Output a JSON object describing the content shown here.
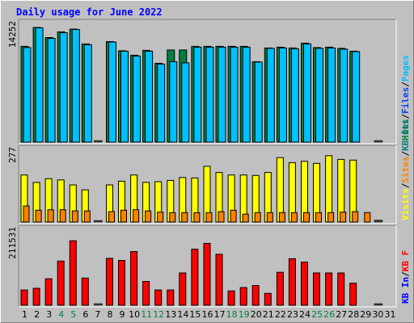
{
  "chart_data": {
    "type": "bar",
    "title": "Daily usage for June 2022",
    "title_color": "#0000ff",
    "categories": [
      "1",
      "2",
      "3",
      "4",
      "5",
      "6",
      "7",
      "8",
      "9",
      "10",
      "11",
      "12",
      "13",
      "14",
      "15",
      "16",
      "17",
      "18",
      "19",
      "20",
      "21",
      "22",
      "23",
      "24",
      "25",
      "26",
      "27",
      "28",
      "29",
      "30",
      "31"
    ],
    "weekend_days": [
      "4",
      "5",
      "11",
      "12",
      "18",
      "19",
      "25",
      "26"
    ],
    "weekend_color": "#008040",
    "panels": [
      {
        "id": "hits",
        "max_label": "14252",
        "ymax": 14252,
        "legend": [
          {
            "text": "Hits",
            "color": "#008040"
          },
          {
            "text": "/",
            "color": "#000000"
          },
          {
            "text": "Files",
            "color": "#0040ff"
          },
          {
            "text": "/",
            "color": "#000000"
          },
          {
            "text": "Pages",
            "color": "#00c0ff"
          }
        ],
        "series": [
          {
            "name": "Hits",
            "color": "#008040",
            "values": [
              11900,
              14252,
              13000,
              13700,
              14050,
              12200,
              0,
              12500,
              11350,
              10800,
              11400,
              9800,
              11450,
              11450,
              11900,
              11900,
              11900,
              11900,
              11900,
              10000,
              11700,
              11800,
              11700,
              12300,
              11750,
              11800,
              11650,
              11300,
              0,
              0,
              0
            ]
          },
          {
            "name": "Files",
            "color": "#0040ff",
            "values": [
              0,
              0,
              0,
              0,
              0,
              0,
              0,
              0,
              0,
              0,
              0,
              0,
              0,
              0,
              0,
              0,
              0,
              0,
              0,
              0,
              0,
              0,
              0,
              0,
              0,
              0,
              0,
              0,
              0,
              0,
              0
            ]
          },
          {
            "name": "Pages",
            "color": "#00c0ff",
            "values": [
              11750,
              14200,
              12900,
              13600,
              14000,
              12100,
              0,
              12450,
              11300,
              10700,
              11300,
              9700,
              10000,
              9850,
              11800,
              11800,
              11800,
              11800,
              11800,
              9950,
              11650,
              11700,
              11600,
              12200,
              11650,
              11700,
              11550,
              11250,
              0,
              0,
              0
            ]
          }
        ],
        "markers": [
          {
            "day": "7",
            "value": 0
          },
          {
            "day": "30",
            "value": 0
          }
        ]
      },
      {
        "id": "visits",
        "max_label": "277",
        "ymax": 277,
        "legend": [
          {
            "text": "Visits",
            "color": "#ffff00"
          },
          {
            "text": "/",
            "color": "#000000"
          },
          {
            "text": "Sites",
            "color": "#ff8000"
          },
          {
            "text": "/",
            "color": "#000000"
          },
          {
            "text": "KB Out",
            "color": "#008080"
          }
        ],
        "series": [
          {
            "name": "Visits",
            "color": "#ffff00",
            "values": [
              190,
              160,
              175,
              170,
              150,
              130,
              0,
              150,
              165,
              190,
              160,
              163,
              168,
              180,
              178,
              225,
              200,
              190,
              190,
              188,
              200,
              260,
              240,
              245,
              237,
              268,
              253,
              250,
              0,
              0,
              0
            ]
          },
          {
            "name": "Sites",
            "color": "#ff8000",
            "values": [
              65,
              48,
              50,
              50,
              45,
              45,
              0,
              42,
              48,
              50,
              45,
              40,
              38,
              38,
              38,
              38,
              42,
              48,
              32,
              38,
              38,
              38,
              38,
              38,
              38,
              38,
              40,
              42,
              38,
              0,
              0
            ]
          },
          {
            "name": "KB Out",
            "color": "#008080",
            "values": [
              0,
              0,
              0,
              0,
              0,
              0,
              0,
              0,
              0,
              0,
              0,
              0,
              0,
              0,
              0,
              0,
              0,
              0,
              0,
              0,
              0,
              0,
              0,
              0,
              0,
              0,
              0,
              0,
              0,
              0,
              0
            ]
          }
        ],
        "markers": [
          {
            "day": "7",
            "value": 0
          },
          {
            "day": "30",
            "value": 8
          }
        ]
      },
      {
        "id": "kbf",
        "max_label": "211531",
        "ymax": 211531,
        "legend": [
          {
            "text": "KB In",
            "color": "#0000ff"
          },
          {
            "text": "/",
            "color": "#000000"
          },
          {
            "text": "KB F",
            "color": "#ff0000"
          }
        ],
        "series": [
          {
            "name": "KB F",
            "color": "#ff0000",
            "values": [
              45000,
              50000,
              78000,
              130000,
              190000,
              80000,
              0,
              138000,
              132000,
              158000,
              70000,
              45000,
              45000,
              95000,
              165000,
              182000,
              150000,
              42000,
              52000,
              58000,
              35000,
              97000,
              137000,
              127000,
              95000,
              95000,
              95000,
              65000,
              0,
              0,
              0
            ]
          }
        ],
        "markers": [
          {
            "day": "7",
            "value": 0
          },
          {
            "day": "30",
            "value": 0
          }
        ]
      }
    ]
  }
}
